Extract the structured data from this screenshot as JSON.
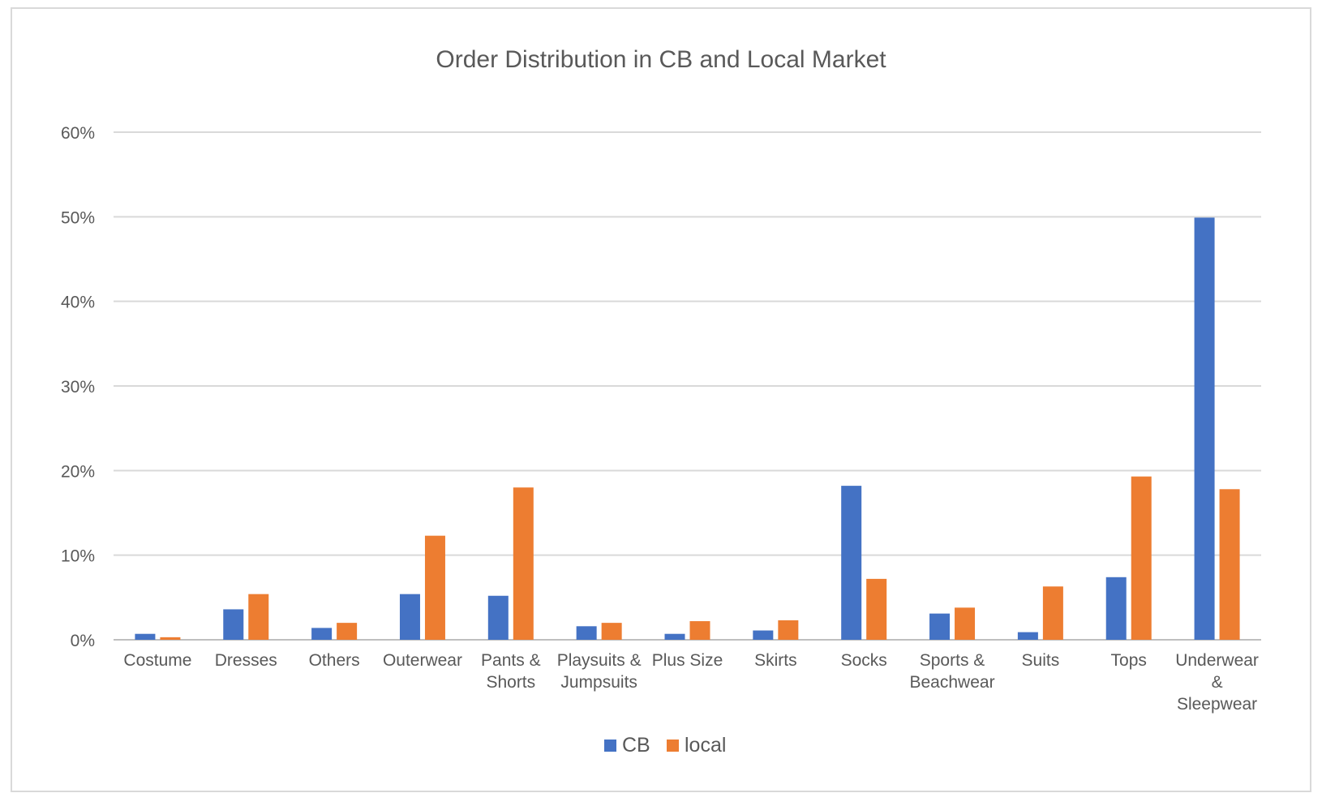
{
  "chart_data": {
    "type": "bar",
    "title": "Order Distribution in CB and Local Market",
    "xlabel": "",
    "ylabel": "",
    "ylim": [
      0,
      60
    ],
    "yticks": [
      "0%",
      "10%",
      "20%",
      "30%",
      "40%",
      "50%",
      "60%"
    ],
    "y_unit": "%",
    "grid": true,
    "legend_position": "bottom",
    "categories": [
      [
        "Costume"
      ],
      [
        "Dresses"
      ],
      [
        "Others"
      ],
      [
        "Outerwear"
      ],
      [
        "Pants &",
        "Shorts"
      ],
      [
        "Playsuits &",
        "Jumpsuits"
      ],
      [
        "Plus Size"
      ],
      [
        "Skirts"
      ],
      [
        "Socks"
      ],
      [
        "Sports &",
        "Beachwear"
      ],
      [
        "Suits"
      ],
      [
        "Tops"
      ],
      [
        "Underwear",
        "&",
        "Sleepwear"
      ]
    ],
    "series": [
      {
        "name": "CB",
        "color": "#4472c4",
        "values": [
          0.7,
          3.6,
          1.4,
          5.4,
          5.2,
          1.6,
          0.7,
          1.1,
          18.2,
          3.1,
          0.9,
          7.4,
          49.9
        ]
      },
      {
        "name": "local",
        "color": "#ed7d31",
        "values": [
          0.3,
          5.4,
          2.0,
          12.3,
          18.0,
          2.0,
          2.2,
          2.3,
          7.2,
          3.8,
          6.3,
          19.3,
          17.8
        ]
      }
    ]
  }
}
